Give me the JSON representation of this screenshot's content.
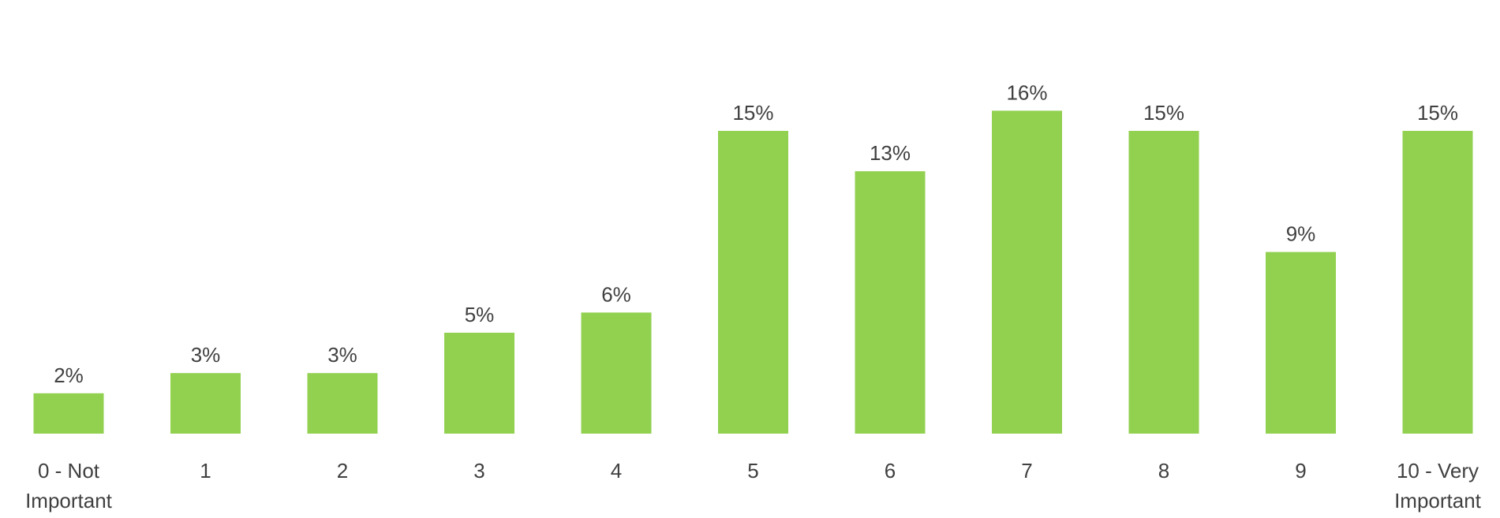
{
  "chart_data": {
    "type": "bar",
    "title": "",
    "xlabel": "",
    "ylabel": "",
    "categories": [
      [
        "0 - Not",
        "Important"
      ],
      [
        "1"
      ],
      [
        "2"
      ],
      [
        "3"
      ],
      [
        "4"
      ],
      [
        "5"
      ],
      [
        "6"
      ],
      [
        "7"
      ],
      [
        "8"
      ],
      [
        "9"
      ],
      [
        "10 - Very",
        "Important"
      ]
    ],
    "values": [
      2,
      3,
      3,
      5,
      6,
      15,
      13,
      16,
      15,
      9,
      15
    ],
    "data_labels": [
      "2%",
      "3%",
      "3%",
      "5%",
      "6%",
      "15%",
      "13%",
      "16%",
      "15%",
      "9%",
      "15%"
    ],
    "unit": "%",
    "ylim": [
      0,
      16
    ],
    "grid": false,
    "legend": "none",
    "bar_color": "#92D050",
    "text_color": "#404040"
  }
}
